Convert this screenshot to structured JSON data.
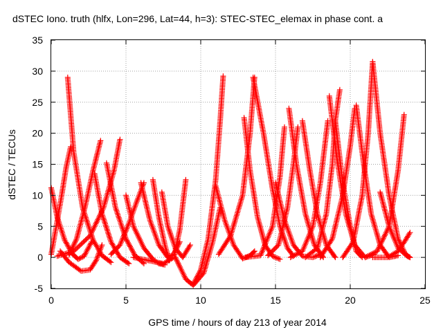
{
  "chart_data": {
    "type": "scatter",
    "title": "dSTEC Iono. truth (hlfx, Lon=296, Lat=44, h=3): STEC-STEC_elemax in phase cont. a",
    "xlabel": "GPS time / hours of day 213 of year 2014",
    "ylabel": "dSTEC  / TECUs",
    "xlim": [
      0,
      25
    ],
    "ylim": [
      -5,
      35
    ],
    "x_ticks": [
      0,
      5,
      10,
      15,
      20,
      25
    ],
    "y_ticks": [
      -5,
      0,
      5,
      10,
      15,
      20,
      25,
      30,
      35
    ],
    "x_tick_labels": [
      "0",
      "5",
      "10",
      "15",
      "20",
      "25"
    ],
    "y_tick_labels": [
      "-5",
      "0",
      "5",
      "10",
      "15",
      "20",
      "25",
      "30",
      "35"
    ],
    "grid": true,
    "marker": "plus",
    "color": "#ff0000",
    "arcs": [
      {
        "x": [
          0.0,
          0.4,
          0.9,
          1.4,
          1.8,
          2.2,
          2.7
        ],
        "y": [
          11.2,
          6.5,
          2.8,
          0.6,
          -0.3,
          0.2,
          2.5
        ]
      },
      {
        "x": [
          0.0,
          0.3,
          0.7,
          1.0,
          1.3
        ],
        "y": [
          0.5,
          4.5,
          10.0,
          14.5,
          17.8
        ]
      },
      {
        "x": [
          1.1,
          1.5,
          2.1,
          2.8,
          3.4,
          4.0
        ],
        "y": [
          29.0,
          17.0,
          8.0,
          2.8,
          0.3,
          -0.8
        ]
      },
      {
        "x": [
          1.2,
          1.7,
          2.3,
          2.8,
          3.3
        ],
        "y": [
          0.4,
          3.0,
          8.5,
          14.0,
          18.8
        ]
      },
      {
        "x": [
          0.6,
          1.2,
          2.0,
          2.6,
          3.0,
          3.4
        ],
        "y": [
          1.0,
          -0.8,
          -2.2,
          -2.0,
          -0.5,
          2.0
        ]
      },
      {
        "x": [
          2.9,
          3.4,
          4.0,
          4.6,
          5.2
        ],
        "y": [
          13.5,
          7.0,
          2.5,
          0.0,
          -1.0
        ]
      },
      {
        "x": [
          0.4,
          1.5,
          2.6,
          3.5,
          4.2,
          4.6
        ],
        "y": [
          0.2,
          1.0,
          3.5,
          8.0,
          14.0,
          19.0
        ]
      },
      {
        "x": [
          3.7,
          4.3,
          5.0,
          5.6,
          6.2
        ],
        "y": [
          15.2,
          8.0,
          3.0,
          0.3,
          -1.0
        ]
      },
      {
        "x": [
          4.0,
          4.6,
          5.2,
          5.8,
          6.2
        ],
        "y": [
          0.5,
          2.0,
          5.5,
          9.5,
          12.0
        ]
      },
      {
        "x": [
          5.0,
          5.5,
          6.2,
          6.8,
          7.2,
          7.6
        ],
        "y": [
          10.0,
          5.0,
          1.5,
          -0.3,
          -1.0,
          -1.2
        ]
      },
      {
        "x": [
          6.0,
          6.6,
          7.2,
          7.8,
          8.2,
          8.6
        ],
        "y": [
          12.0,
          6.0,
          2.0,
          0.0,
          0.5,
          2.5
        ]
      },
      {
        "x": [
          6.8,
          7.2,
          7.6,
          7.9
        ],
        "y": [
          12.5,
          6.5,
          2.0,
          -0.5
        ]
      },
      {
        "x": [
          7.4,
          7.8,
          8.3,
          8.8,
          9.3
        ],
        "y": [
          10.5,
          5.0,
          1.5,
          0.0,
          2.0
        ]
      },
      {
        "x": [
          5.5,
          6.5,
          7.5,
          8.2,
          8.6,
          9.0
        ],
        "y": [
          0.0,
          -0.5,
          -1.0,
          0.0,
          4.5,
          12.5
        ]
      },
      {
        "x": [
          8.3,
          9.0,
          9.5,
          10.2,
          10.8,
          11.3
        ],
        "y": [
          0.0,
          -3.5,
          -4.5,
          -2.5,
          2.5,
          8.0
        ]
      },
      {
        "x": [
          9.5,
          10.0,
          10.5,
          11.0,
          11.3,
          11.5
        ],
        "y": [
          -4.3,
          -2.0,
          3.0,
          12.5,
          22.0,
          29.2
        ]
      },
      {
        "x": [
          11.0,
          11.6,
          12.2,
          12.8,
          13.3,
          13.6
        ],
        "y": [
          11.5,
          6.0,
          2.0,
          -0.2,
          0.3,
          1.0
        ]
      },
      {
        "x": [
          11.2,
          12.0,
          12.8,
          13.3,
          13.6
        ],
        "y": [
          0.5,
          3.5,
          10.0,
          20.0,
          29.0
        ]
      },
      {
        "x": [
          12.9,
          13.3,
          13.8,
          14.3,
          14.8,
          15.3
        ],
        "y": [
          22.5,
          14.0,
          6.5,
          2.0,
          0.2,
          -0.3
        ]
      },
      {
        "x": [
          13.5,
          14.2,
          14.8,
          15.3,
          15.8,
          16.2
        ],
        "y": [
          29.0,
          20.0,
          11.0,
          5.0,
          1.5,
          0.2
        ]
      },
      {
        "x": [
          13.0,
          14.0,
          14.8,
          15.3,
          15.6
        ],
        "y": [
          0.0,
          0.3,
          5.0,
          13.0,
          21.0
        ]
      },
      {
        "x": [
          15.0,
          15.6,
          16.2,
          16.8,
          17.5,
          18.0
        ],
        "y": [
          12.0,
          6.0,
          2.0,
          0.2,
          0.0,
          0.5
        ]
      },
      {
        "x": [
          14.5,
          15.2,
          15.8,
          16.2,
          16.5
        ],
        "y": [
          0.3,
          2.0,
          8.0,
          15.0,
          21.0
        ]
      },
      {
        "x": [
          15.9,
          16.4,
          17.0,
          17.6,
          18.2
        ],
        "y": [
          24.0,
          15.0,
          7.0,
          2.0,
          0.0
        ]
      },
      {
        "x": [
          16.8,
          17.3,
          17.8,
          18.4,
          19.0
        ],
        "y": [
          22.0,
          14.0,
          7.0,
          2.0,
          0.0
        ]
      },
      {
        "x": [
          16.0,
          16.8,
          17.5,
          18.0,
          18.5
        ],
        "y": [
          0.0,
          1.0,
          5.0,
          12.0,
          22.0
        ]
      },
      {
        "x": [
          17.0,
          17.8,
          18.4,
          18.8,
          19.0,
          19.3
        ],
        "y": [
          0.0,
          1.5,
          7.0,
          15.0,
          22.0,
          27.0
        ]
      },
      {
        "x": [
          18.6,
          19.1,
          19.7,
          20.3,
          21.0,
          21.6
        ],
        "y": [
          26.0,
          16.0,
          7.0,
          2.0,
          0.0,
          0.5
        ]
      },
      {
        "x": [
          19.0,
          19.5,
          20.0,
          20.4,
          20.8
        ],
        "y": [
          22.0,
          12.0,
          5.0,
          1.0,
          0.0
        ]
      },
      {
        "x": [
          18.0,
          18.8,
          19.5,
          20.0,
          20.3
        ],
        "y": [
          0.0,
          3.0,
          10.0,
          18.0,
          24.0
        ]
      },
      {
        "x": [
          20.4,
          20.9,
          21.4,
          22.0,
          22.6,
          23.2
        ],
        "y": [
          24.5,
          15.0,
          7.0,
          2.0,
          0.0,
          0.3
        ]
      },
      {
        "x": [
          19.5,
          20.2,
          20.8,
          21.2,
          21.5
        ],
        "y": [
          0.0,
          2.5,
          10.0,
          20.0,
          31.5
        ]
      },
      {
        "x": [
          21.5,
          22.0,
          22.6,
          23.2,
          23.7,
          24.0
        ],
        "y": [
          31.5,
          20.0,
          10.0,
          3.0,
          0.5,
          0.0
        ]
      },
      {
        "x": [
          21.0,
          21.8,
          22.6,
          23.2,
          23.6
        ],
        "y": [
          0.0,
          1.0,
          5.0,
          14.0,
          23.0
        ]
      },
      {
        "x": [
          22.0,
          22.6,
          23.2,
          23.8,
          24.0
        ],
        "y": [
          10.5,
          5.0,
          1.5,
          0.2,
          0.0
        ]
      },
      {
        "x": [
          21.5,
          22.5,
          23.2,
          23.7,
          24.0
        ],
        "y": [
          0.0,
          0.0,
          1.0,
          2.8,
          4.0
        ]
      }
    ]
  }
}
